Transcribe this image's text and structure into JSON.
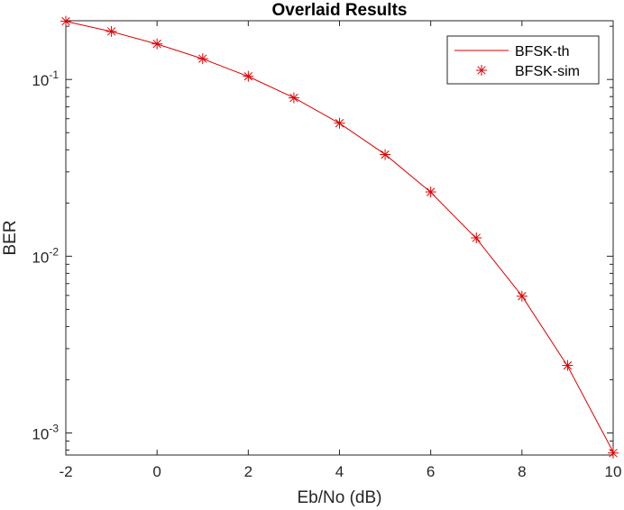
{
  "chart_data": {
    "type": "line",
    "title": "Overlaid Results",
    "xlabel": "Eb/No (dB)",
    "ylabel": "BER",
    "xlim": [
      -2,
      10
    ],
    "ylim": [
      0.00075,
      0.215
    ],
    "yscale": "log",
    "grid": false,
    "legend_position": "top-right",
    "x_ticks": [
      "-2",
      "0",
      "2",
      "4",
      "6",
      "8",
      "10"
    ],
    "y_ticks": [
      {
        "base": "10",
        "exp": "-1",
        "value": 0.1
      },
      {
        "base": "10",
        "exp": "-2",
        "value": 0.01
      },
      {
        "base": "10",
        "exp": "-3",
        "value": 0.001
      }
    ],
    "x": [
      -2,
      -1,
      0,
      1,
      2,
      3,
      4,
      5,
      6,
      7,
      8,
      9,
      10
    ],
    "series": [
      {
        "name": "BFSK-th",
        "style": "line",
        "color": "#e00000",
        "values": [
          0.2132,
          0.1867,
          0.1587,
          0.1309,
          0.104,
          0.0789,
          0.0565,
          0.0377,
          0.023,
          0.0126,
          0.00596,
          0.00239,
          0.00078
        ]
      },
      {
        "name": "BFSK-sim",
        "style": "marker-asterisk",
        "color": "#e00000",
        "values": [
          0.2135,
          0.187,
          0.159,
          0.1311,
          0.1042,
          0.0787,
          0.0566,
          0.0376,
          0.0231,
          0.0127,
          0.00594,
          0.00241,
          0.00077
        ]
      }
    ]
  }
}
